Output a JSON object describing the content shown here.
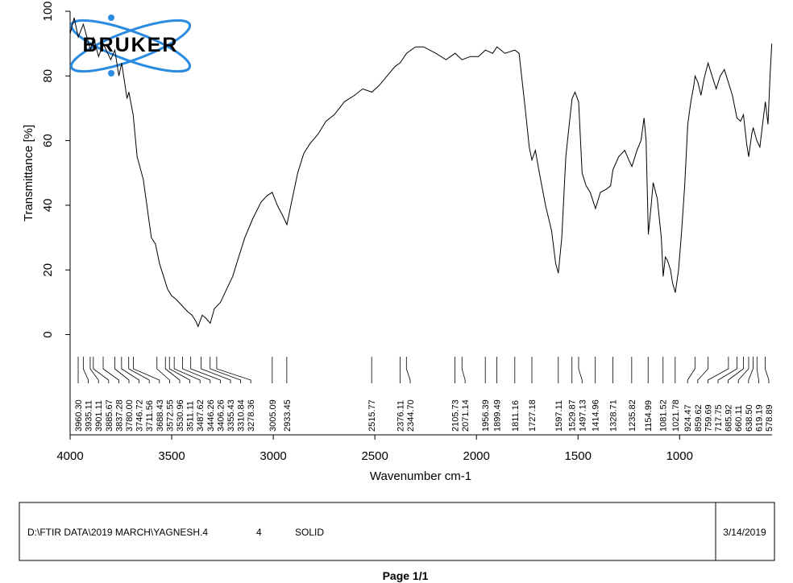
{
  "chart_data": {
    "type": "line",
    "xlabel": "Wavenumber cm-1",
    "ylabel": "Transmittance [%]",
    "xlim": [
      4000,
      545
    ],
    "ylim": [
      -31,
      100
    ],
    "xticks": [
      4000,
      3500,
      3000,
      2500,
      2000,
      1500,
      1000
    ],
    "yticks": [
      0,
      20,
      40,
      60,
      80,
      100
    ],
    "color": "#000000",
    "x": [
      4000,
      3980,
      3960,
      3935,
      3900,
      3885,
      3860,
      3837,
      3800,
      3780,
      3760,
      3746,
      3720,
      3711,
      3690,
      3670,
      3640,
      3600,
      3580,
      3560,
      3540,
      3520,
      3500,
      3480,
      3450,
      3420,
      3400,
      3380,
      3370,
      3350,
      3330,
      3310,
      3290,
      3260,
      3230,
      3200,
      3170,
      3140,
      3100,
      3060,
      3030,
      3005,
      2980,
      2955,
      2933,
      2910,
      2880,
      2850,
      2820,
      2780,
      2740,
      2700,
      2650,
      2600,
      2560,
      2515,
      2480,
      2440,
      2400,
      2376,
      2344,
      2300,
      2260,
      2200,
      2150,
      2105,
      2071,
      2030,
      1990,
      1956,
      1920,
      1899,
      1860,
      1811,
      1790,
      1760,
      1740,
      1727,
      1710,
      1690,
      1660,
      1630,
      1610,
      1597,
      1580,
      1560,
      1540,
      1529,
      1515,
      1497,
      1480,
      1460,
      1440,
      1414,
      1390,
      1360,
      1340,
      1328,
      1300,
      1270,
      1250,
      1235,
      1210,
      1190,
      1175,
      1165,
      1154,
      1140,
      1130,
      1110,
      1090,
      1081,
      1070,
      1060,
      1045,
      1035,
      1021,
      1005,
      990,
      975,
      960,
      945,
      930,
      924,
      910,
      895,
      880,
      860,
      840,
      820,
      800,
      780,
      760,
      740,
      718,
      700,
      686,
      670,
      660,
      645,
      638,
      620,
      605,
      590,
      578,
      565,
      555,
      546
    ],
    "values": [
      93,
      98,
      92,
      96,
      88,
      92,
      86,
      90,
      85,
      88,
      80,
      84,
      73,
      75,
      68,
      55,
      48,
      30,
      28,
      22,
      18,
      14,
      12,
      11,
      9,
      7,
      6,
      4,
      2.5,
      6,
      5,
      3.5,
      8,
      10,
      14,
      18,
      24,
      30,
      36,
      41,
      43,
      44,
      40,
      37,
      34,
      41,
      50,
      56,
      59,
      62,
      66,
      68,
      72,
      74,
      76,
      75,
      77,
      80,
      83,
      84,
      87,
      89,
      89,
      87,
      85,
      87,
      85,
      86,
      86,
      88,
      87,
      89,
      87,
      88,
      87,
      70,
      58,
      54,
      57,
      50,
      40,
      32,
      22,
      19,
      30,
      55,
      67,
      73,
      75,
      72,
      50,
      46,
      44,
      39,
      44,
      45,
      46,
      51,
      55,
      57,
      54,
      52,
      57,
      60,
      67,
      60,
      31,
      40,
      47,
      42,
      30,
      18,
      24,
      23,
      20,
      16,
      13,
      20,
      32,
      46,
      65,
      72,
      77,
      80,
      78,
      74,
      79,
      84,
      80,
      76,
      80,
      82,
      78,
      74,
      67,
      66,
      68,
      59,
      55,
      62,
      64,
      60,
      58,
      66,
      72,
      65,
      80,
      90
    ],
    "peaks": [
      {
        "value": 3960.3,
        "label": "3960.30"
      },
      {
        "value": 3935.11,
        "label": "3935.11"
      },
      {
        "value": 3901.11,
        "label": "3901.11"
      },
      {
        "value": 3885.67,
        "label": "3885.67"
      },
      {
        "value": 3837.28,
        "label": "3837.28"
      },
      {
        "value": 3780.0,
        "label": "3780.00"
      },
      {
        "value": 3746.72,
        "label": "3746.72"
      },
      {
        "value": 3711.56,
        "label": "3711.56"
      },
      {
        "value": 3688.43,
        "label": "3688.43"
      },
      {
        "value": 3572.55,
        "label": "3572.55"
      },
      {
        "value": 3530.96,
        "label": "3530.96"
      },
      {
        "value": 3511.11,
        "label": "3511.11"
      },
      {
        "value": 3487.62,
        "label": "3487.62"
      },
      {
        "value": 3446.26,
        "label": "3446.26"
      },
      {
        "value": 3406.26,
        "label": "3406.26"
      },
      {
        "value": 3355.43,
        "label": "3355.43"
      },
      {
        "value": 3310.84,
        "label": "3310.84"
      },
      {
        "value": 3278.36,
        "label": "3278.36"
      },
      {
        "value": 3005.09,
        "label": "3005.09"
      },
      {
        "value": 2933.45,
        "label": "2933.45"
      },
      {
        "value": 2515.77,
        "label": "2515.77"
      },
      {
        "value": 2376.11,
        "label": "2376.11"
      },
      {
        "value": 2344.7,
        "label": "2344.70"
      },
      {
        "value": 2105.73,
        "label": "2105.73"
      },
      {
        "value": 2071.14,
        "label": "2071.14"
      },
      {
        "value": 1956.39,
        "label": "1956.39"
      },
      {
        "value": 1899.49,
        "label": "1899.49"
      },
      {
        "value": 1811.16,
        "label": "1811.16"
      },
      {
        "value": 1727.18,
        "label": "1727.18"
      },
      {
        "value": 1597.11,
        "label": "1597.11"
      },
      {
        "value": 1529.87,
        "label": "1529.87"
      },
      {
        "value": 1497.13,
        "label": "1497.13"
      },
      {
        "value": 1414.96,
        "label": "1414.96"
      },
      {
        "value": 1328.71,
        "label": "1328.71"
      },
      {
        "value": 1235.82,
        "label": "1235.82"
      },
      {
        "value": 1154.99,
        "label": "1154.99"
      },
      {
        "value": 1081.52,
        "label": "1081.52"
      },
      {
        "value": 1021.78,
        "label": "1021.78"
      },
      {
        "value": 924.47,
        "label": "924.47"
      },
      {
        "value": 859.62,
        "label": "859.62"
      },
      {
        "value": 759.69,
        "label": "759.69"
      },
      {
        "value": 717.75,
        "label": "717.75"
      },
      {
        "value": 685.92,
        "label": "685.92"
      },
      {
        "value": 660.11,
        "label": "660.11"
      },
      {
        "value": 638.5,
        "label": "638.50"
      },
      {
        "value": 619.19,
        "label": "619.19"
      },
      {
        "value": 578.89,
        "label": "578.89"
      }
    ]
  },
  "logo": "BRUKER",
  "footer": {
    "file": "D:\\FTIR DATA\\2019 MARCH\\YAGNESH.4",
    "number": "4",
    "sample": "SOLID",
    "date": "3/14/2019",
    "page": "Page 1/1"
  }
}
